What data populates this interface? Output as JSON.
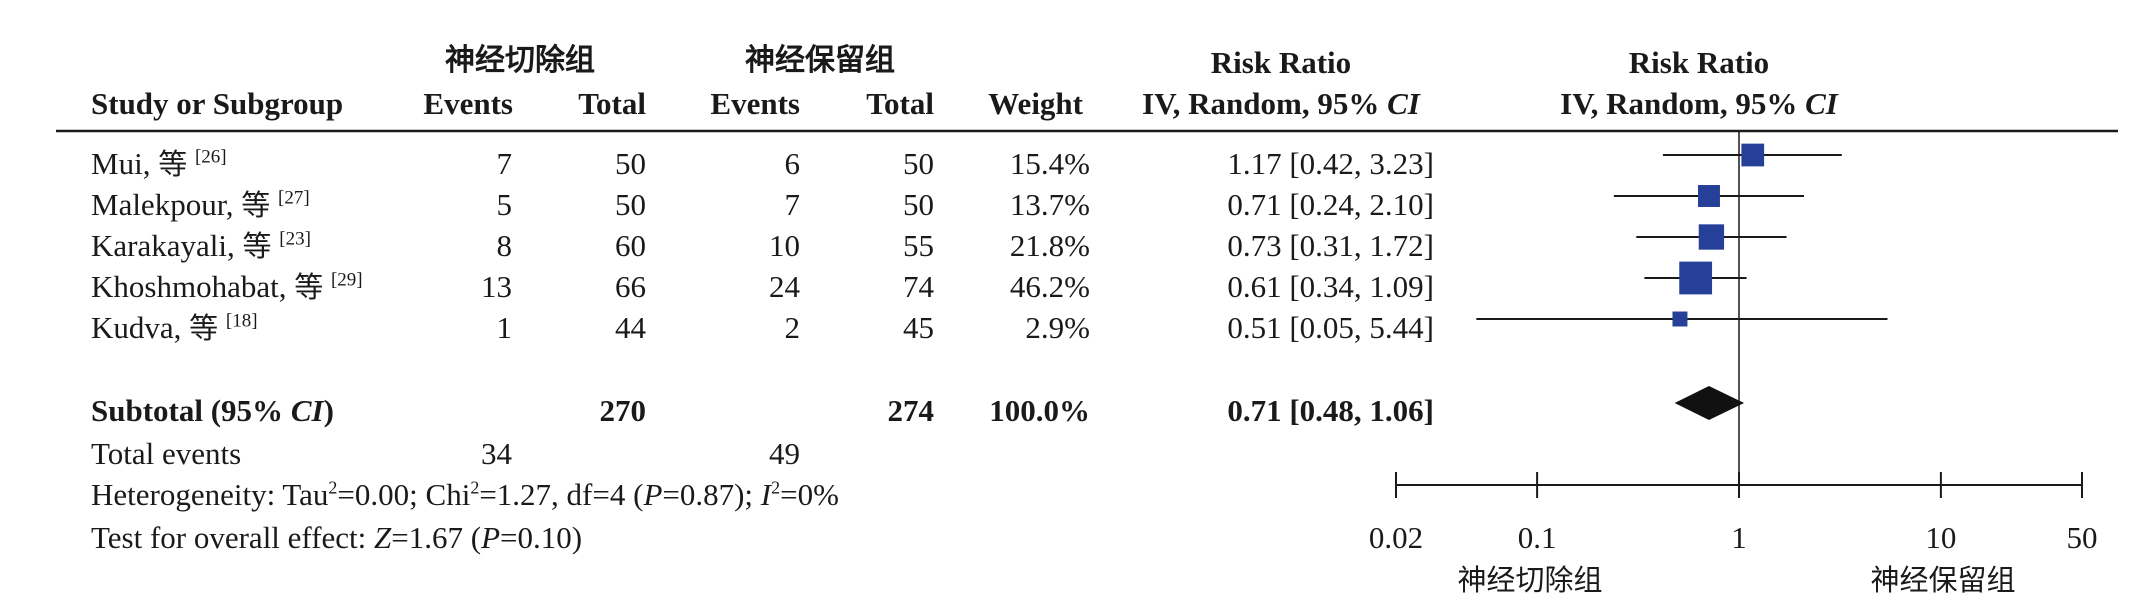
{
  "chart_data": {
    "type": "forest",
    "title": "",
    "group1_name": "神经切除组",
    "group2_name": "神经保留组",
    "columns": {
      "study": "Study or Subgroup",
      "events1": "Events",
      "total1": "Total",
      "events2": "Events",
      "total2": "Total",
      "weight": "Weight",
      "effect_header_line1": "Risk Ratio",
      "effect_header_line2_prefix": "IV, Random, 95% ",
      "effect_header_ci": "CI",
      "plot_header_line1": "Risk Ratio",
      "plot_header_line2_prefix": "IV, Random, 95% ",
      "plot_header_ci": "CI"
    },
    "et_al": "等",
    "studies": [
      {
        "name": "Mui",
        "ref": "[26]",
        "e1": "7",
        "n1": "50",
        "e2": "6",
        "n2": "50",
        "weight": "15.4%",
        "ci_text": "1.17 [0.42, 3.23]",
        "rr": 1.17,
        "lo": 0.42,
        "hi": 3.23,
        "w": 15.4
      },
      {
        "name": "Malekpour",
        "ref": "[27]",
        "e1": "5",
        "n1": "50",
        "e2": "7",
        "n2": "50",
        "weight": "13.7%",
        "ci_text": "0.71 [0.24, 2.10]",
        "rr": 0.71,
        "lo": 0.24,
        "hi": 2.1,
        "w": 13.7
      },
      {
        "name": "Karakayali",
        "ref": "[23]",
        "e1": "8",
        "n1": "60",
        "e2": "10",
        "n2": "55",
        "weight": "21.8%",
        "ci_text": "0.73 [0.31, 1.72]",
        "rr": 0.73,
        "lo": 0.31,
        "hi": 1.72,
        "w": 21.8
      },
      {
        "name": "Khoshmohabat",
        "ref": "[29]",
        "e1": "13",
        "n1": "66",
        "e2": "24",
        "n2": "74",
        "weight": "46.2%",
        "ci_text": "0.61 [0.34, 1.09]",
        "rr": 0.61,
        "lo": 0.34,
        "hi": 1.09,
        "w": 46.2
      },
      {
        "name": "Kudva",
        "ref": "[18]",
        "e1": "1",
        "n1": "44",
        "e2": "2",
        "n2": "45",
        "weight": "2.9%",
        "ci_text": "0.51 [0.05, 5.44]",
        "rr": 0.51,
        "lo": 0.05,
        "hi": 5.44,
        "w": 2.9
      }
    ],
    "subtotal": {
      "label_prefix": "Subtotal (95% ",
      "label_ci": "CI",
      "label_suffix": ")",
      "n1": "270",
      "n2": "274",
      "weight": "100.0%",
      "ci_text": "0.71 [0.48, 1.06]",
      "rr": 0.71,
      "lo": 0.48,
      "hi": 1.06
    },
    "total_events": {
      "label": "Total events",
      "e1": "34",
      "e2": "49"
    },
    "heterogeneity": {
      "prefix": "Heterogeneity: Tau",
      "tau2_value": "=0.00; Chi",
      "chi2_value": "=1.27, df=4 (",
      "p_letter": "P",
      "p_value": "=0.87); ",
      "i_letter": "I",
      "i2_value": "=0%",
      "sq": "2"
    },
    "overall_effect": {
      "prefix": "Test for overall effect: ",
      "z_letter": "Z",
      "z_value": "=1.67 (",
      "p_letter": "P",
      "p_value": "=0.10)"
    },
    "axis": {
      "scale": "log",
      "ticks": [
        0.02,
        0.1,
        1,
        10,
        50
      ],
      "tick_labels": [
        "0.02",
        "0.1",
        "1",
        "10",
        "50"
      ],
      "left_label": "神经切除组",
      "right_label": "神经保留组",
      "xlim": [
        0.02,
        50
      ]
    },
    "colors": {
      "marker": "#26409a",
      "diamond": "#111111",
      "line": "#1a1a1a"
    }
  }
}
